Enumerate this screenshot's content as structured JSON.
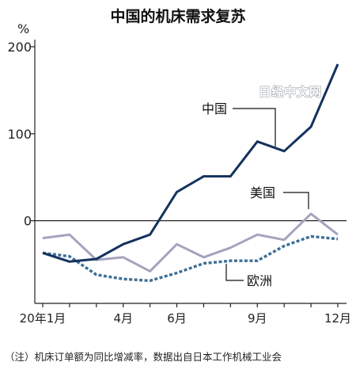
{
  "watermark": "日经中文网",
  "note": "（注）机床订单额为同比增减率，数据出自日本工作机械工业会",
  "colors": {
    "china": "#14325f",
    "us": "#a5a3bd",
    "eu": "#3d6f96",
    "axis": "#222222"
  },
  "chart_data": {
    "type": "line",
    "title": "中国的机床需求复苏",
    "ylabel": "%",
    "xlabel": "",
    "ylim": [
      -95,
      200
    ],
    "yticks": [
      0,
      100,
      200
    ],
    "grid": false,
    "x": [
      1,
      2,
      3,
      4,
      5,
      6,
      7,
      8,
      9,
      10,
      11,
      12
    ],
    "xtick_labels": [
      {
        "x": 1,
        "label": "20年1月"
      },
      {
        "x": 4,
        "label": "4月"
      },
      {
        "x": 6,
        "label": "6月"
      },
      {
        "x": 9,
        "label": "9月"
      },
      {
        "x": 12,
        "label": "12月"
      }
    ],
    "series": [
      {
        "name": "中国",
        "style": "solid",
        "color_key": "china",
        "values": [
          -37,
          -47,
          -44,
          -27,
          -16,
          33,
          51,
          51,
          91,
          80,
          108,
          180
        ]
      },
      {
        "name": "美国",
        "style": "solid",
        "color_key": "us",
        "values": [
          -20,
          -16,
          -45,
          -42,
          -58,
          -27,
          -42,
          -31,
          -16,
          -22,
          8,
          -16
        ]
      },
      {
        "name": "欧洲",
        "style": "dotted",
        "color_key": "eu",
        "values": [
          -37,
          -41,
          -62,
          -67,
          -69,
          -60,
          -49,
          -46,
          -46,
          -29,
          -18,
          -21
        ]
      }
    ]
  }
}
